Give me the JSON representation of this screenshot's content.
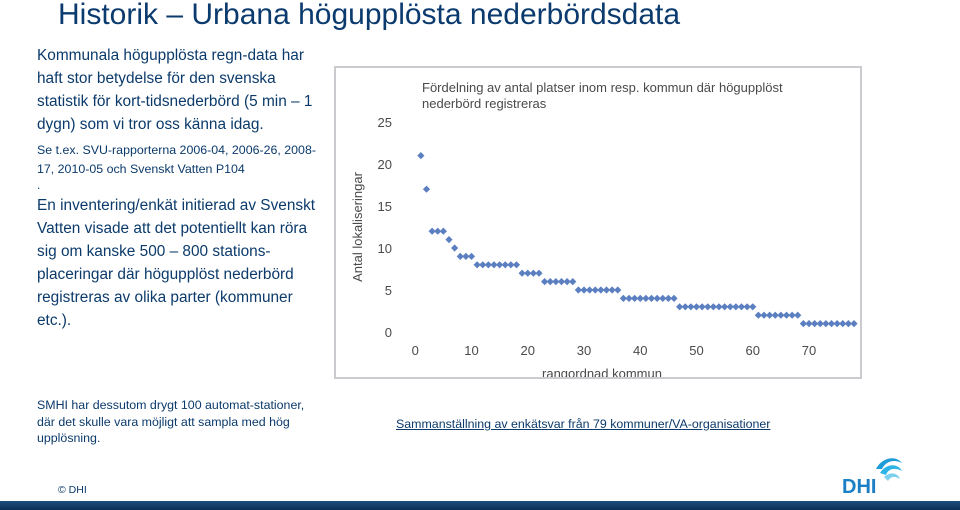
{
  "title": "Historik – Urbana högupplösta nederbördsdata",
  "left": {
    "paragraph1": "Kommunala högupplösta regn-data har haft stor betydelse för den svenska statistik för kort-tidsnederbörd (5 min – 1 dygn) som vi tror oss känna idag.",
    "reference": "Se t.ex. SVU-rapporterna 2006-04, 2006-26, 2008-17, 2010-05 och Svenskt Vatten P104",
    "reference_dot": ".",
    "paragraph2": "En inventering/enkät initierad av Svenskt Vatten visade att det potentiellt kan röra sig om kanske 500 – 800 stations-placeringar där högupplöst nederbörd registreras av olika parter (kommuner etc.).",
    "smhi_note": "SMHI har dessutom drygt 100 automat-stationer, där det skulle vara möjligt att sampla med hög upplösning."
  },
  "caption": "Sammanställning av enkätsvar från 79 kommuner/VA-organisationer",
  "copyright": "© DHI",
  "logo_text": "DHI",
  "colors": {
    "accent": "#0a3a6e",
    "marker": "#5b7fc0",
    "footer": "#123e6a"
  },
  "chart_data": {
    "type": "scatter",
    "title": "Fördelning av antal platser inom resp. kommun där högupplöst nederbörd registreras",
    "xlabel": "rangordnad kommun",
    "ylabel": "Antal lokaliseringar",
    "xlim": [
      -2,
      78
    ],
    "ylim": [
      0,
      25
    ],
    "xticks": [
      0,
      10,
      20,
      30,
      40,
      50,
      60,
      70
    ],
    "yticks": [
      0,
      5,
      10,
      15,
      20,
      25
    ],
    "grid": false,
    "marker": "diamond",
    "series": [
      {
        "x": [
          1,
          2,
          3,
          4,
          5,
          6,
          7,
          8,
          9,
          10,
          11,
          12,
          13,
          14,
          15,
          16,
          17,
          18,
          19,
          20,
          21,
          22,
          23,
          24,
          25,
          26,
          27,
          28,
          29,
          30,
          31,
          32,
          33,
          34,
          35,
          36,
          37,
          38,
          39,
          40,
          41,
          42,
          43,
          44,
          45,
          46,
          47,
          48,
          49,
          50,
          51,
          52,
          53,
          54,
          55,
          56,
          57,
          58,
          59,
          60,
          61,
          62,
          63,
          64,
          65,
          66,
          67,
          68,
          69,
          70,
          71,
          72,
          73,
          74,
          75,
          76,
          77,
          78
        ],
        "y": [
          21,
          17,
          12,
          12,
          12,
          11,
          10,
          9,
          9,
          9,
          8,
          8,
          8,
          8,
          8,
          8,
          8,
          8,
          7,
          7,
          7,
          7,
          6,
          6,
          6,
          6,
          6,
          6,
          5,
          5,
          5,
          5,
          5,
          5,
          5,
          5,
          4,
          4,
          4,
          4,
          4,
          4,
          4,
          4,
          4,
          4,
          3,
          3,
          3,
          3,
          3,
          3,
          3,
          3,
          3,
          3,
          3,
          3,
          3,
          3,
          2,
          2,
          2,
          2,
          2,
          2,
          2,
          2,
          1,
          1,
          1,
          1,
          1,
          1,
          1,
          1,
          1,
          1
        ]
      }
    ]
  }
}
